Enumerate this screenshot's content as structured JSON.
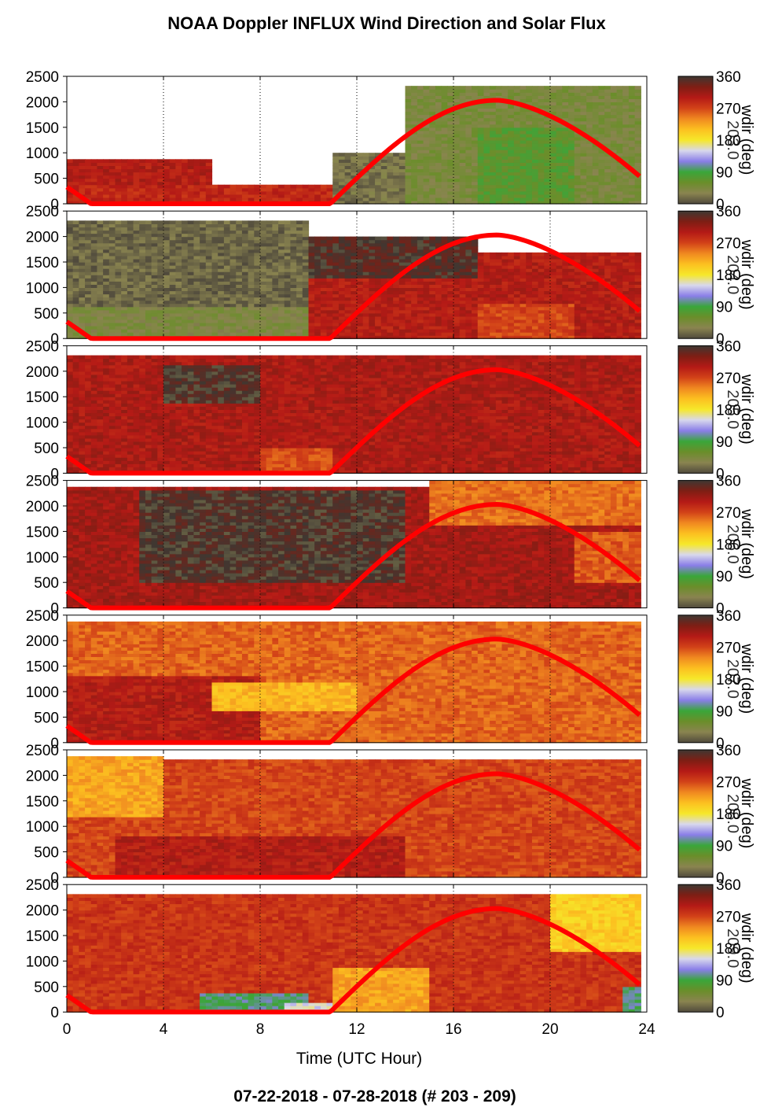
{
  "title": "NOAA Doppler INFLUX Wind Direction and Solar Flux",
  "footer": "07-22-2018 - 07-28-2018   (# 203 - 209)",
  "chart_data": {
    "type": "heatmap",
    "xlabel": "Time (UTC Hour)",
    "xlim": [
      0,
      24
    ],
    "xticks": [
      0,
      4,
      8,
      12,
      16,
      20,
      24
    ],
    "ylim": [
      0,
      2500
    ],
    "yticks": [
      0,
      500,
      1000,
      1500,
      2000,
      2500
    ],
    "colorbar": {
      "label": "wdir (deg)",
      "range": [
        0,
        360
      ],
      "ticks": [
        0,
        90,
        180,
        270,
        360
      ],
      "colors": [
        "#504a3c",
        "#8a8450",
        "#6a8e2a",
        "#3aa63a",
        "#8a7ee8",
        "#d8d8ec",
        "#f6e82a",
        "#fcc020",
        "#f08820",
        "#d24218",
        "#b41a16",
        "#7e1e14",
        "#3e3832"
      ]
    },
    "solar_curve": {
      "color": "#ff0000",
      "peak_hour": 17.8,
      "peak_value": 2030,
      "rise_hour": 10.9,
      "set_value_at_end": 540,
      "start_value": 330,
      "zero_until_hour": 1.0
    },
    "panels": [
      {
        "day_label": "203.0",
        "bands": [
          {
            "t0": 0,
            "t1": 11,
            "hmax": 400,
            "wdir": 290
          },
          {
            "t0": 0,
            "t1": 6,
            "hmin": 400,
            "hmax": 850,
            "wdir": 300
          },
          {
            "t0": 11,
            "t1": 14,
            "hmax": 1000,
            "wdir": 20
          },
          {
            "t0": 14,
            "t1": 24,
            "hmax": 2300,
            "wdir": 45
          },
          {
            "t0": 17,
            "t1": 21,
            "hmax": 1500,
            "wdir": 70
          }
        ]
      },
      {
        "day_label": "204.0",
        "bands": [
          {
            "t0": 0,
            "t1": 10,
            "hmax": 2300,
            "wdir": 15
          },
          {
            "t0": 0,
            "t1": 10,
            "hmax": 600,
            "wdir": 40
          },
          {
            "t0": 10,
            "t1": 24,
            "hmax": 1700,
            "wdir": 300
          },
          {
            "t0": 17,
            "t1": 21,
            "hmax": 700,
            "wdir": 270
          },
          {
            "t0": 10,
            "t1": 17,
            "hmin": 1200,
            "hmax": 2000,
            "wdir": 350
          }
        ]
      },
      {
        "day_label": "205.0",
        "bands": [
          {
            "t0": 0,
            "t1": 24,
            "hmax": 2300,
            "wdir": 305
          },
          {
            "t0": 8,
            "t1": 11,
            "hmax": 500,
            "wdir": 265
          },
          {
            "t0": 4,
            "t1": 8,
            "hmin": 1400,
            "hmax": 2100,
            "wdir": 355
          }
        ]
      },
      {
        "day_label": "206.0",
        "bands": [
          {
            "t0": 0,
            "t1": 24,
            "hmax": 2400,
            "wdir": 310
          },
          {
            "t0": 3,
            "t1": 14,
            "hmin": 500,
            "hmax": 2300,
            "wdir": 355
          },
          {
            "t0": 15,
            "t1": 24,
            "hmin": 1600,
            "hmax": 2500,
            "wdir": 250
          },
          {
            "t0": 21,
            "t1": 24,
            "hmin": 500,
            "hmax": 1500,
            "wdir": 260
          }
        ]
      },
      {
        "day_label": "207.0",
        "bands": [
          {
            "t0": 0,
            "t1": 24,
            "hmax": 2400,
            "wdir": 255
          },
          {
            "t0": 0,
            "t1": 8,
            "hmax": 1300,
            "wdir": 300
          },
          {
            "t0": 6,
            "t1": 12,
            "hmin": 600,
            "hmax": 1200,
            "wdir": 215
          }
        ]
      },
      {
        "day_label": "208.0",
        "bands": [
          {
            "t0": 0,
            "t1": 24,
            "hmax": 2300,
            "wdir": 270
          },
          {
            "t0": 0,
            "t1": 4,
            "hmin": 1200,
            "hmax": 2400,
            "wdir": 225
          },
          {
            "t0": 2,
            "t1": 14,
            "hmax": 800,
            "wdir": 300
          }
        ]
      },
      {
        "day_label": "209.0",
        "bands": [
          {
            "t0": 0,
            "t1": 24,
            "hmax": 2300,
            "wdir": 280
          },
          {
            "t0": 5.5,
            "t1": 10,
            "hmax": 350,
            "wdir": 100
          },
          {
            "t0": 9,
            "t1": 11,
            "hmax": 200,
            "wdir": 150
          },
          {
            "t0": 11,
            "t1": 15,
            "hmax": 900,
            "wdir": 225
          },
          {
            "t0": 20,
            "t1": 24,
            "hmin": 1200,
            "hmax": 2300,
            "wdir": 200
          },
          {
            "t0": 23,
            "t1": 24,
            "hmax": 500,
            "wdir": 100
          }
        ]
      }
    ]
  }
}
